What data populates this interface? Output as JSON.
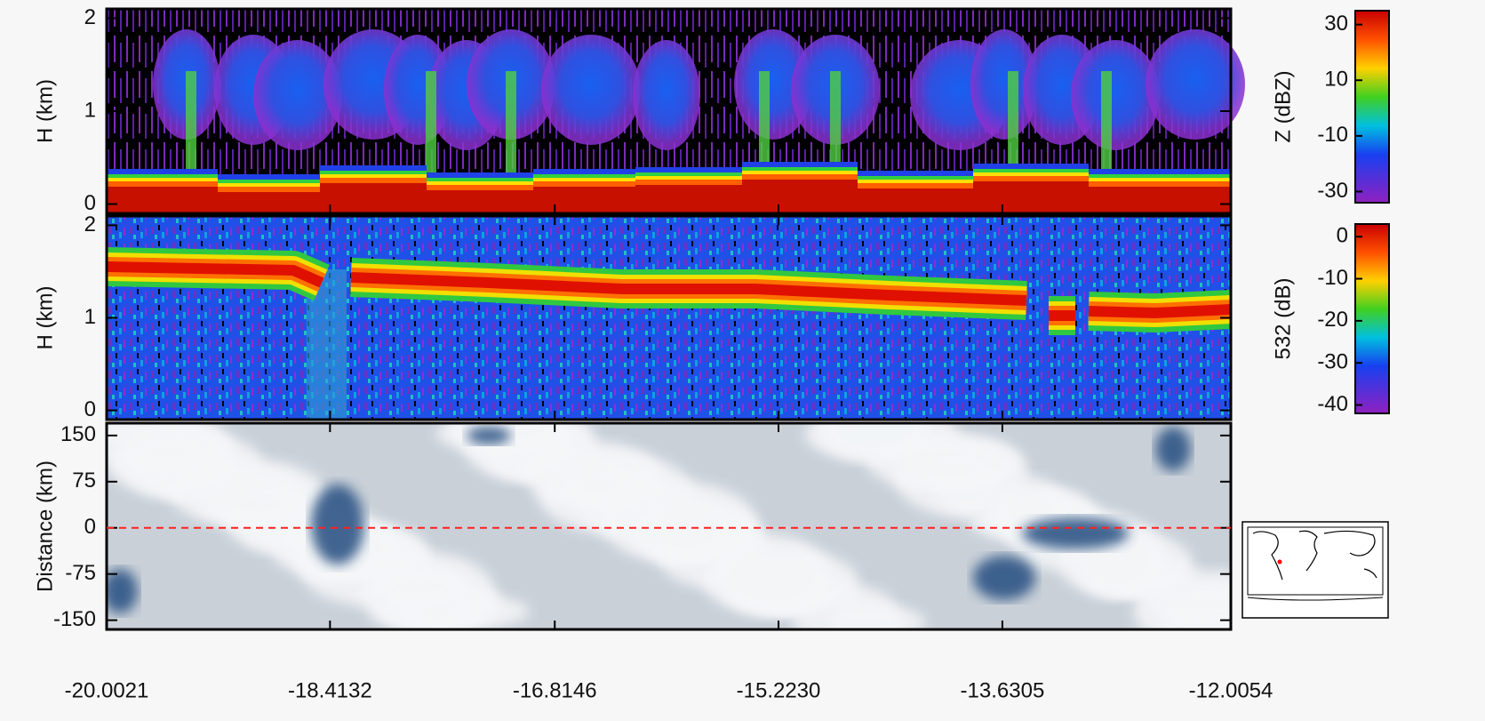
{
  "chart_data": [
    {
      "type": "heatmap",
      "ylabel": "H (km)",
      "ylim": [
        -0.1,
        2.1
      ],
      "yticks": [
        0,
        1,
        2
      ],
      "colorbar": {
        "label": "Z (dBZ)",
        "lim": [
          -34,
          35
        ],
        "ticks": [
          -30,
          -10,
          10,
          30
        ]
      }
    },
    {
      "type": "heatmap",
      "ylabel": "H (km)",
      "ylim": [
        -0.1,
        2.1
      ],
      "yticks": [
        0,
        1,
        2
      ],
      "colorbar": {
        "label": "532 (dB)",
        "lim": [
          -42,
          3
        ],
        "ticks": [
          -40,
          -30,
          -20,
          -10,
          0
        ]
      }
    },
    {
      "type": "image",
      "ylabel": "Distance (km)",
      "ylim": [
        -165,
        170
      ],
      "yticks": [
        -150,
        -75,
        0,
        75,
        150
      ],
      "reference_line": {
        "value": 0,
        "color": "#ff2020"
      },
      "xlim": [
        -20.0021,
        -12.0054
      ],
      "xticks": [
        -20.0021,
        -18.4132,
        -16.8146,
        {
          "value": -15.223,
          "label": "-15.2230"
        },
        -13.6305,
        -12.0054
      ]
    }
  ]
}
